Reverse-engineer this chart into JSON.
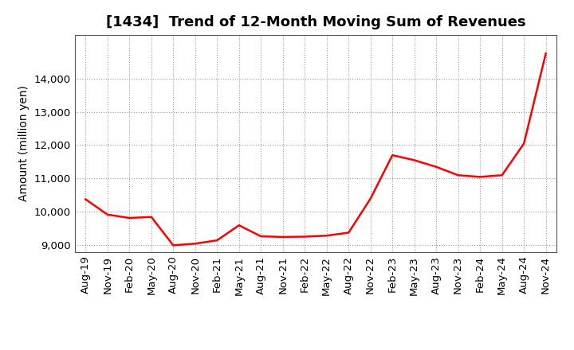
{
  "title": "[1434]  Trend of 12-Month Moving Sum of Revenues",
  "ylabel": "Amount (million yen)",
  "line_color": "#FF0000",
  "line_width": 1.8,
  "background_color": "#FFFFFF",
  "grid_color": "#999999",
  "x_labels": [
    "Aug-19",
    "Nov-19",
    "Feb-20",
    "May-20",
    "Aug-20",
    "Nov-20",
    "Feb-21",
    "May-21",
    "Aug-21",
    "Nov-21",
    "Feb-22",
    "May-22",
    "Aug-22",
    "Nov-22",
    "Feb-23",
    "May-23",
    "Aug-23",
    "Nov-23",
    "Feb-24",
    "May-24",
    "Aug-24",
    "Nov-24"
  ],
  "values": [
    10380,
    9920,
    9820,
    9850,
    9000,
    9050,
    9150,
    9600,
    9270,
    9250,
    9260,
    9290,
    9380,
    10400,
    11700,
    11550,
    11350,
    11100,
    11050,
    11100,
    12050,
    14750
  ],
  "ylim": [
    8800,
    15300
  ],
  "yticks": [
    9000,
    10000,
    11000,
    12000,
    13000,
    14000
  ],
  "title_fontsize": 13,
  "ylabel_fontsize": 10,
  "tick_fontsize": 9.5
}
